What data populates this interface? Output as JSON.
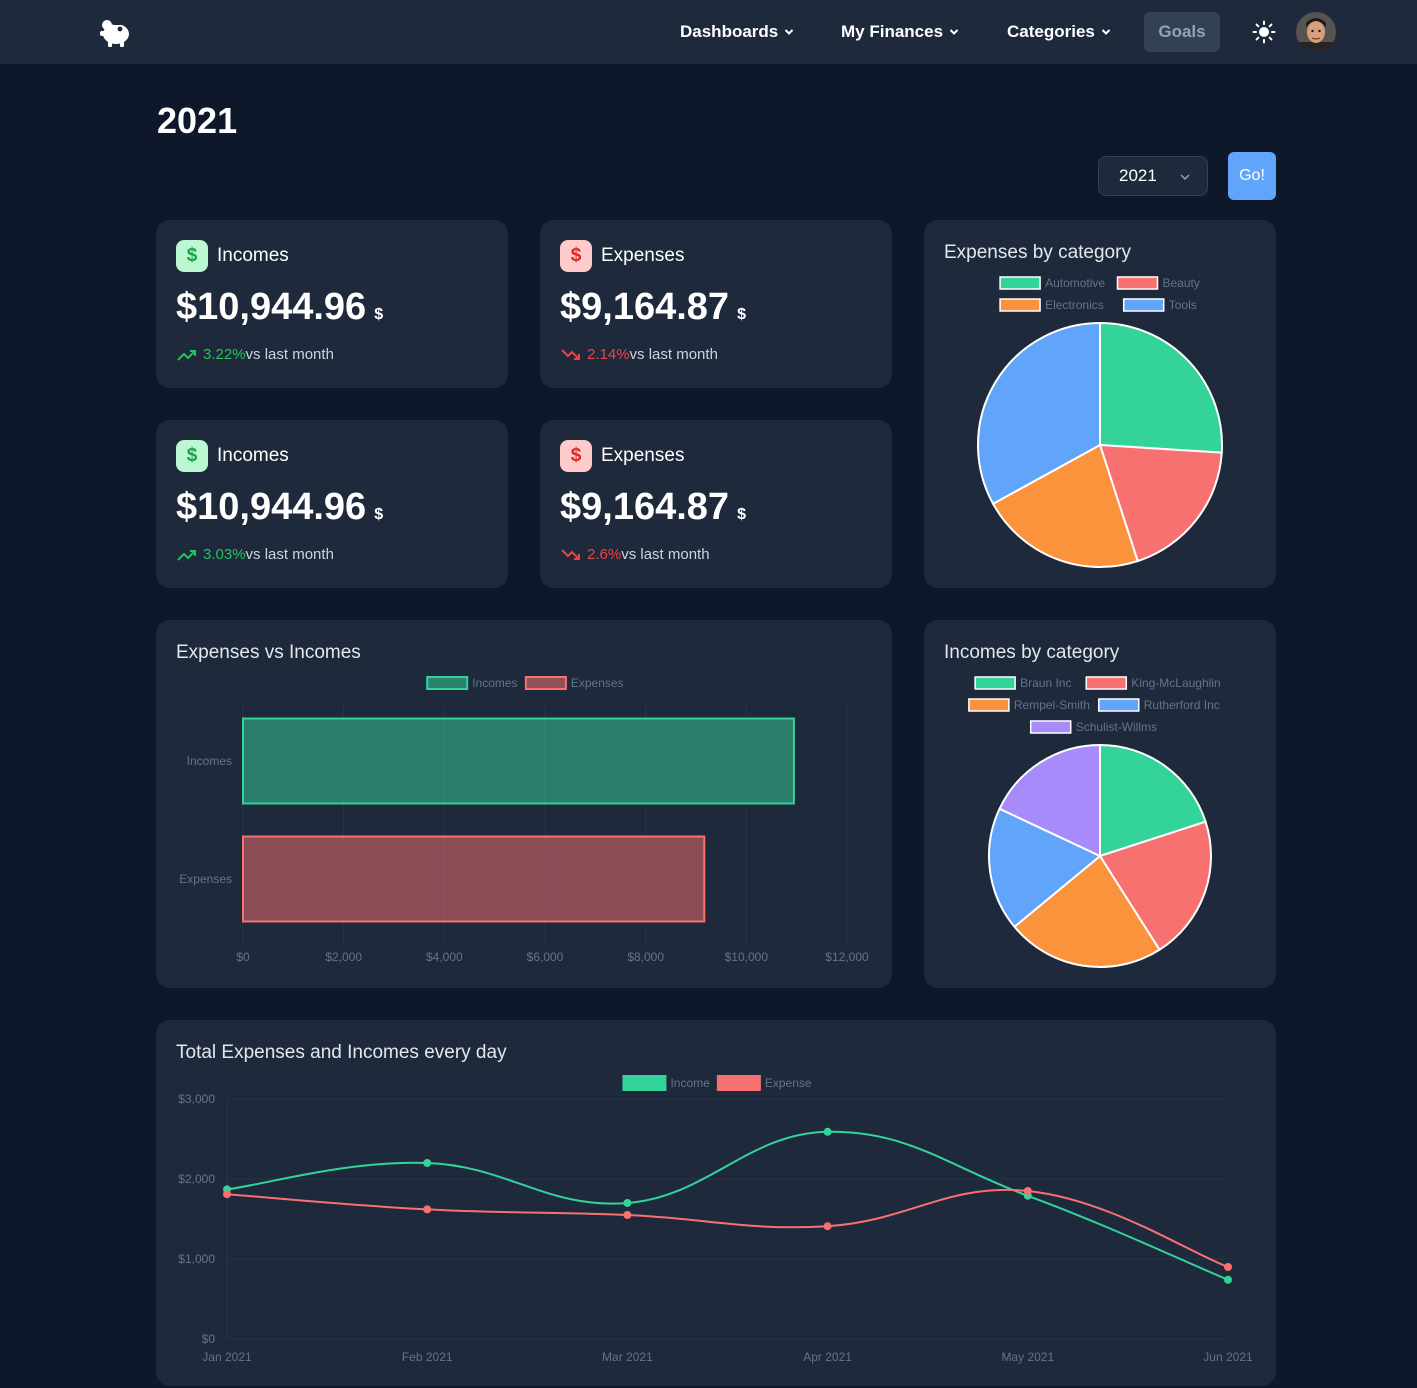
{
  "nav": {
    "items": [
      {
        "label": "Dashboards"
      },
      {
        "label": "My Finances"
      },
      {
        "label": "Categories"
      }
    ],
    "goals_label": "Goals",
    "logo_icon": "piggy-bank-icon",
    "theme_icon": "sun-icon"
  },
  "page": {
    "title": "2021",
    "year_select": "2021",
    "go_label": "Go!"
  },
  "stats": [
    {
      "title": "Incomes",
      "amount": "$10,944.96",
      "currency": "$",
      "pct": "3.22%",
      "suffix": "vs last month",
      "direction": "up"
    },
    {
      "title": "Expenses",
      "amount": "$9,164.87",
      "currency": "$",
      "pct": "2.14%",
      "suffix": "vs last month",
      "direction": "down"
    },
    {
      "title": "Incomes",
      "amount": "$10,944.96",
      "currency": "$",
      "pct": "3.03%",
      "suffix": "vs last month",
      "direction": "up"
    },
    {
      "title": "Expenses",
      "amount": "$9,164.87",
      "currency": "$",
      "pct": "2.6%",
      "suffix": "vs last month",
      "direction": "down"
    }
  ],
  "colors": {
    "green": "#34d399",
    "red": "#f87171",
    "orange": "#fb923c",
    "blue": "#60a5fa",
    "purple": "#a78bfa",
    "card": "#1e293b",
    "background": "#0f172a"
  },
  "chart_data": [
    {
      "type": "pie",
      "title": "Expenses by category",
      "categories": [
        "Automotive",
        "Beauty",
        "Electronics",
        "Tools"
      ],
      "values": [
        26,
        19,
        22,
        33
      ],
      "colors": [
        "#34d399",
        "#f87171",
        "#fb923c",
        "#60a5fa"
      ],
      "legend": "top"
    },
    {
      "type": "bar",
      "orientation": "horizontal",
      "title": "Expenses vs Incomes",
      "categories": [
        "Incomes",
        "Expenses"
      ],
      "series": [
        {
          "name": "Incomes",
          "values": [
            10944.96,
            null
          ],
          "color": "#34d399"
        },
        {
          "name": "Expenses",
          "values": [
            null,
            9164.87
          ],
          "color": "#f87171"
        }
      ],
      "xlim": [
        0,
        12000
      ],
      "xticks": [
        "$0",
        "$2,000",
        "$4,000",
        "$6,000",
        "$8,000",
        "$10,000",
        "$12,000"
      ],
      "legend": "top"
    },
    {
      "type": "pie",
      "title": "Incomes by category",
      "categories": [
        "Braun Inc",
        "King-McLaughlin",
        "Rempel-Smith",
        "Rutherford Inc",
        "Schulist-Willms"
      ],
      "values": [
        20,
        21,
        23,
        18,
        18
      ],
      "colors": [
        "#34d399",
        "#f87171",
        "#fb923c",
        "#60a5fa",
        "#a78bfa"
      ],
      "legend": "top"
    },
    {
      "type": "line",
      "title": "Total Expenses and Incomes every day",
      "x": [
        "Jan 2021",
        "Feb 2021",
        "Mar 2021",
        "Apr 2021",
        "May 2021",
        "Jun 2021"
      ],
      "series": [
        {
          "name": "Income",
          "values": [
            1870,
            2200,
            1700,
            2590,
            1790,
            740
          ],
          "color": "#34d399"
        },
        {
          "name": "Expense",
          "values": [
            1810,
            1620,
            1550,
            1410,
            1850,
            900
          ],
          "color": "#f87171"
        }
      ],
      "ylim": [
        0,
        3000
      ],
      "yticks": [
        "$0",
        "$1,000",
        "$2,000",
        "$3,000"
      ],
      "legend": "top"
    }
  ]
}
